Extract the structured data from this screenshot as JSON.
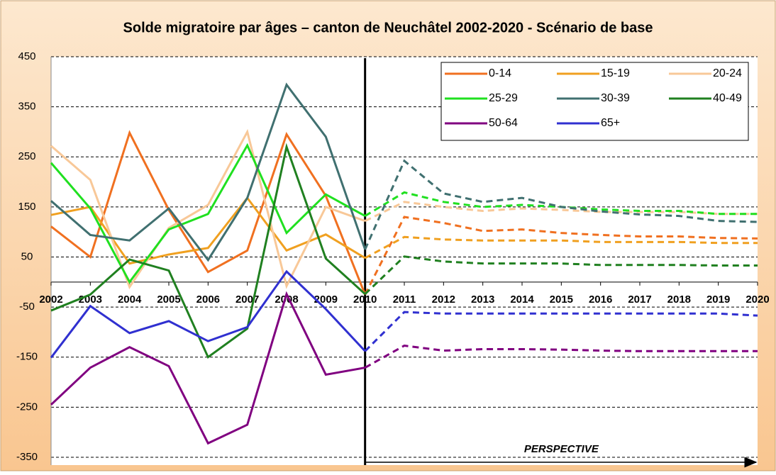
{
  "chart_data": {
    "type": "line",
    "title": "Solde migratoire par âges – canton de Neuchâtel 2002-2020 - Scénario de base",
    "x": [
      2002,
      2003,
      2004,
      2005,
      2006,
      2007,
      2008,
      2009,
      2010,
      2011,
      2012,
      2013,
      2014,
      2015,
      2016,
      2017,
      2018,
      2019,
      2020
    ],
    "xlim": [
      2002,
      2020
    ],
    "ylim": [
      -350,
      450
    ],
    "yticks": [
      -350,
      -250,
      -150,
      -50,
      50,
      150,
      250,
      350,
      450
    ],
    "grid": true,
    "projection_from": 2010,
    "annotation": "PERSPECTIVE",
    "legend": "top-right",
    "series": [
      {
        "name": "0-14",
        "color": "#f07020",
        "values": [
          111,
          50,
          298,
          144,
          20,
          63,
          295,
          172,
          -25,
          130,
          118,
          102,
          105,
          98,
          94,
          91,
          91,
          88,
          87
        ]
      },
      {
        "name": "15-19",
        "color": "#f0a020",
        "values": [
          134,
          150,
          37,
          55,
          68,
          168,
          63,
          95,
          48,
          90,
          85,
          83,
          83,
          83,
          80,
          80,
          80,
          78,
          78
        ]
      },
      {
        "name": "20-24",
        "color": "#f8c898",
        "values": [
          272,
          204,
          -10,
          108,
          154,
          300,
          -8,
          150,
          122,
          160,
          150,
          142,
          147,
          144,
          140,
          140,
          140,
          136,
          136
        ]
      },
      {
        "name": "25-29",
        "color": "#20e020",
        "values": [
          238,
          147,
          0,
          105,
          136,
          273,
          98,
          175,
          132,
          179,
          160,
          150,
          154,
          150,
          145,
          142,
          142,
          136,
          136
        ]
      },
      {
        "name": "30-39",
        "color": "#407070",
        "values": [
          162,
          94,
          83,
          147,
          44,
          168,
          394,
          290,
          65,
          242,
          177,
          160,
          168,
          150,
          141,
          135,
          132,
          122,
          120
        ]
      },
      {
        "name": "40-49",
        "color": "#208020",
        "values": [
          -57,
          -25,
          45,
          23,
          -150,
          -93,
          270,
          47,
          -24,
          51,
          41,
          37,
          37,
          37,
          34,
          34,
          34,
          33,
          33
        ]
      },
      {
        "name": "50-64",
        "color": "#800080",
        "values": [
          -245,
          -171,
          -130,
          -168,
          -322,
          -285,
          -24,
          -185,
          -171,
          -127,
          -137,
          -134,
          -134,
          -135,
          -137,
          -138,
          -138,
          -138,
          -138
        ]
      },
      {
        "name": "65+",
        "color": "#3030d0",
        "values": [
          -151,
          -48,
          -102,
          -78,
          -118,
          -90,
          21,
          -54,
          -138,
          -60,
          -63,
          -63,
          -63,
          -63,
          -63,
          -63,
          -63,
          -63,
          -67
        ]
      }
    ]
  }
}
